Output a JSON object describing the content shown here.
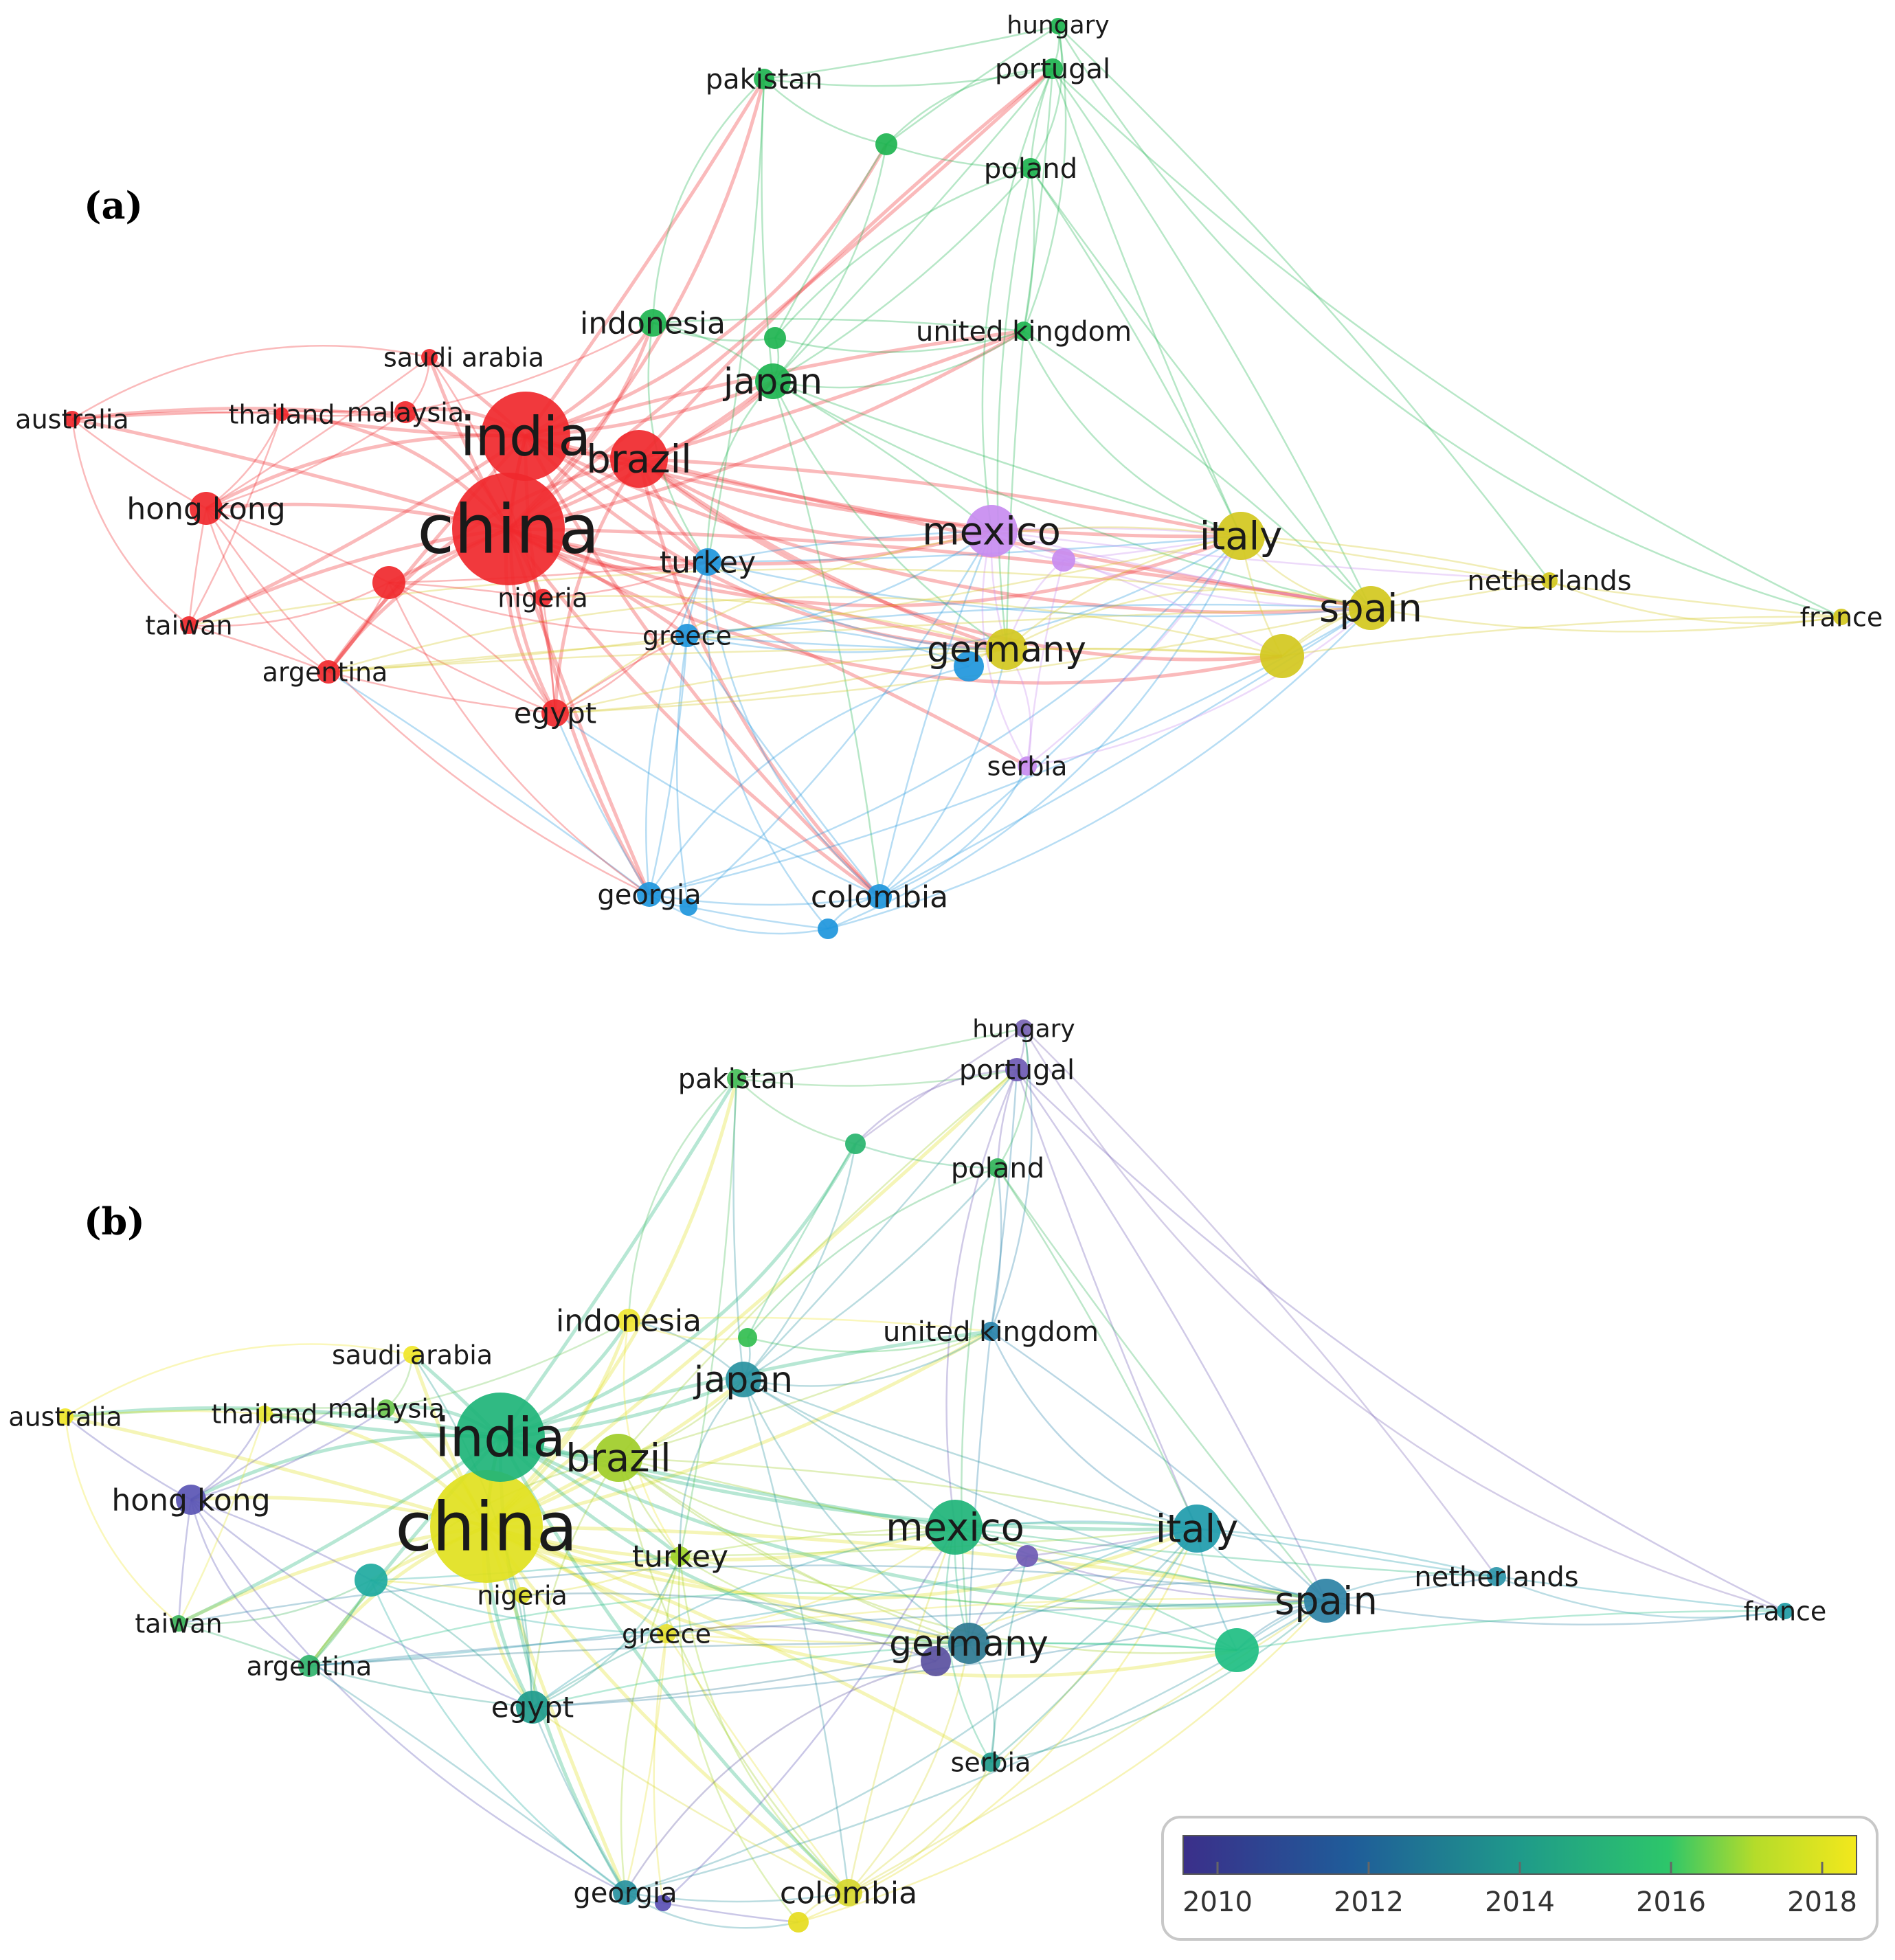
{
  "panels": [
    {
      "id": "a",
      "label": "(a)",
      "coloring": "cluster",
      "node_colors": {
        "china": "#f0282d",
        "india": "#f0282d",
        "brazil": "#f0282d",
        "hong kong": "#f0282d",
        "malaysia": "#f0282d",
        "thailand": "#f0282d",
        "saudi arabia": "#f0282d",
        "australia": "#f0282d",
        "taiwan": "#f0282d",
        "argentina": "#f0282d",
        "egypt": "#f0282d",
        "nigeria": "#f0282d",
        "unlabeled-1": "#f0282d",
        "japan": "#1eb450",
        "indonesia": "#1eb450",
        "united kingdom": "#1eb450",
        "pakistan": "#1eb450",
        "portugal": "#1eb450",
        "hungary": "#1eb450",
        "poland": "#1eb450",
        "unlabeled-2": "#1eb450",
        "unlabeled-3": "#1eb450",
        "turkey": "#1e96dc",
        "greece": "#1e96dc",
        "georgia": "#1e96dc",
        "colombia": "#1e96dc",
        "unlabeled-4": "#1e96dc",
        "unlabeled-5": "#1e96dc",
        "germany-blue": "#1e96dc",
        "mexico": "#c88cf0",
        "serbia": "#c88cf0",
        "unlabeled-6": "#c88cf0",
        "italy": "#d2c81e",
        "spain": "#d2c81e",
        "netherlands": "#d2c81e",
        "france": "#d2c81e",
        "unlabeled-7": "#d2c81e",
        "germany": "#d2c81e"
      }
    },
    {
      "id": "b",
      "label": "(b)",
      "coloring": "year",
      "node_colors": {
        "china": "#e1e11e",
        "india": "#1eb478",
        "brazil": "#a0cd28",
        "hong kong": "#5a55b4",
        "malaysia": "#6ec850",
        "thailand": "#e6e632",
        "saudi arabia": "#f0e628",
        "australia": "#f0e628",
        "taiwan": "#3cb45a",
        "argentina": "#32b46e",
        "egypt": "#1e9b8c",
        "nigeria": "#dcdc28",
        "unlabeled-1": "#1eaaa0",
        "japan": "#2891a0",
        "indonesia": "#f0e632",
        "united kingdom": "#2882aa",
        "pakistan": "#46be5a",
        "portugal": "#6e5ab4",
        "hungary": "#7864b4",
        "poland": "#32b45a",
        "unlabeled-2": "#28b46e",
        "unlabeled-3": "#32be50",
        "turkey": "#a0d228",
        "greece": "#e6e132",
        "georgia": "#2891a0",
        "colombia": "#d7d72d",
        "unlabeled-4": "#5a50b4",
        "unlabeled-5": "#e6dc1e",
        "mexico": "#1eb478",
        "serbia": "#1e9b8c",
        "unlabeled-6": "#6e5ab4",
        "italy": "#1e9bab",
        "spain": "#2d82a5",
        "netherlands": "#2d96aa",
        "france": "#1e9ba5",
        "unlabeled-7": "#1ebe82",
        "germany": "#2d7891",
        "germany-blue": "#5a50a0"
      }
    }
  ],
  "nodes": [
    {
      "id": "china",
      "label": "china",
      "weight": 10
    },
    {
      "id": "india",
      "label": "india",
      "weight": 8
    },
    {
      "id": "brazil",
      "label": "brazil",
      "weight": 5
    },
    {
      "id": "hong kong",
      "label": "hong kong",
      "weight": 3
    },
    {
      "id": "malaysia",
      "label": "malaysia",
      "weight": 2
    },
    {
      "id": "thailand",
      "label": "thailand",
      "weight": 1
    },
    {
      "id": "saudi arabia",
      "label": "saudi arabia",
      "weight": 1
    },
    {
      "id": "australia",
      "label": "australia",
      "weight": 1
    },
    {
      "id": "taiwan",
      "label": "taiwan",
      "weight": 1
    },
    {
      "id": "argentina",
      "label": "argentina",
      "weight": 2
    },
    {
      "id": "egypt",
      "label": "egypt",
      "weight": 2
    },
    {
      "id": "nigeria",
      "label": "nigeria",
      "weight": 1
    },
    {
      "id": "unlabeled-1",
      "label": "",
      "weight": 2
    },
    {
      "id": "japan",
      "label": "japan",
      "weight": 3
    },
    {
      "id": "indonesia",
      "label": "indonesia",
      "weight": 2
    },
    {
      "id": "united kingdom",
      "label": "united kingdom",
      "weight": 1
    },
    {
      "id": "pakistan",
      "label": "pakistan",
      "weight": 1
    },
    {
      "id": "portugal",
      "label": "portugal",
      "weight": 1
    },
    {
      "id": "hungary",
      "label": "hungary",
      "weight": 1
    },
    {
      "id": "poland",
      "label": "poland",
      "weight": 1
    },
    {
      "id": "unlabeled-2",
      "label": "",
      "weight": 1
    },
    {
      "id": "unlabeled-3",
      "label": "",
      "weight": 1
    },
    {
      "id": "turkey",
      "label": "turkey",
      "weight": 2
    },
    {
      "id": "greece",
      "label": "greece",
      "weight": 1
    },
    {
      "id": "georgia",
      "label": "georgia",
      "weight": 2
    },
    {
      "id": "colombia",
      "label": "colombia",
      "weight": 2
    },
    {
      "id": "unlabeled-4",
      "label": "",
      "weight": 1
    },
    {
      "id": "unlabeled-5",
      "label": "",
      "weight": 1
    },
    {
      "id": "mexico",
      "label": "mexico",
      "weight": 5
    },
    {
      "id": "serbia",
      "label": "serbia",
      "weight": 1
    },
    {
      "id": "unlabeled-6",
      "label": "",
      "weight": 1
    },
    {
      "id": "italy",
      "label": "italy",
      "weight": 4
    },
    {
      "id": "spain",
      "label": "spain",
      "weight": 4
    },
    {
      "id": "netherlands",
      "label": "netherlands",
      "weight": 1
    },
    {
      "id": "france",
      "label": "france",
      "weight": 1
    },
    {
      "id": "unlabeled-7",
      "label": "",
      "weight": 4
    },
    {
      "id": "germany",
      "label": "germany",
      "weight": 4
    },
    {
      "id": "germany-blue",
      "label": "",
      "weight": 2
    }
  ],
  "legend": {
    "type": "color-scale",
    "ticks": [
      "2010",
      "2012",
      "2014",
      "2016",
      "2018"
    ]
  }
}
